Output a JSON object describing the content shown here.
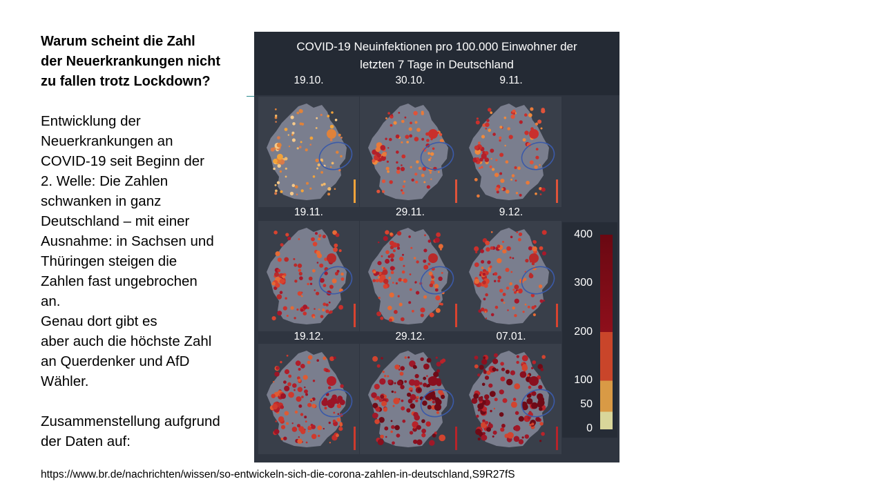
{
  "slide": {
    "heading_lines": [
      "Warum scheint die Zahl",
      "der Neuerkrankungen nicht",
      "zu fallen trotz Lockdown?"
    ],
    "body_lines": [
      "Entwicklung der",
      "Neuerkrankungen an",
      "COVID-19 seit Beginn der",
      "2. Welle: Die Zahlen",
      "schwanken in ganz",
      "Deutschland – mit einer",
      "Ausnahme: in Sachsen und",
      "Thüringen steigen die",
      "Zahlen fast ungebrochen",
      "an.",
      "Genau dort gibt es",
      "aber auch die höchste Zahl",
      "an Querdenker und AfD",
      "Wähler.",
      "",
      "Zusammenstellung aufgrund",
      "der Daten auf:"
    ],
    "source_url": "https://www.br.de/nachrichten/wissen/so-entwickeln-sich-die-corona-zahlen-in-deutschland,S9R27fS"
  },
  "figure": {
    "title_lines": [
      "COVID-19 Neuinfektionen pro 100.000 Einwohner der",
      "letzten 7 Tage in Deutschland"
    ],
    "maps": [
      {
        "date": "19.10.",
        "intensity": 0
      },
      {
        "date": "30.10.",
        "intensity": 1
      },
      {
        "date": "9.11.",
        "intensity": 1
      },
      {
        "date": "19.11.",
        "intensity": 2
      },
      {
        "date": "29.11.",
        "intensity": 2
      },
      {
        "date": "9.12.",
        "intensity": 2
      },
      {
        "date": "19.12.",
        "intensity": 3
      },
      {
        "date": "29.12.",
        "intensity": 4
      },
      {
        "date": "07.01.",
        "intensity": 4
      }
    ],
    "legend": {
      "ticks": [
        "400",
        "300",
        "200",
        "100",
        "50",
        "0"
      ],
      "colors": {
        "band_0_50": "#d9d69a",
        "band_50_100": "#d99a45",
        "band_100_200": "#c9452a",
        "band_200_300": "#8e0f1b",
        "band_300_400": "#6a0812"
      }
    }
  }
}
